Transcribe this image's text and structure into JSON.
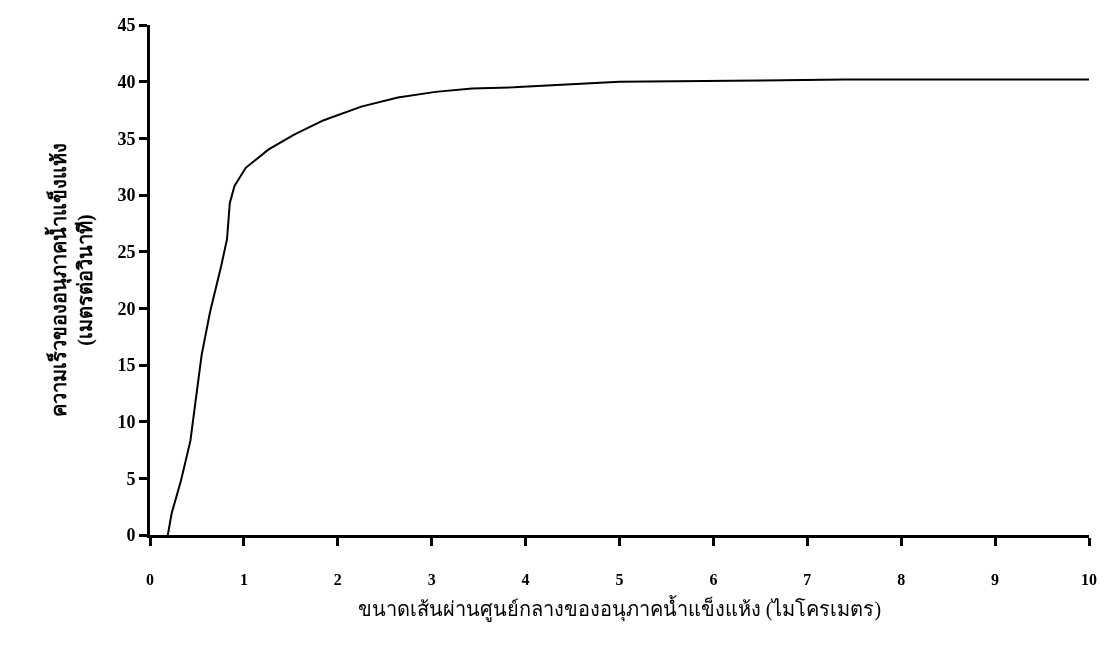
{
  "chart_data": {
    "type": "line",
    "xlabel": "ขนาดเส้นผ่านศูนย์กลางของอนุภาคน้ำแข็งแห้ง (ไมโครเมตร)",
    "ylabel": "ความเร็วของอนุภาคน้ำแข็งแห้ง\n(เมตรต่อวินาที)",
    "x": [
      0.19,
      0.23,
      0.33,
      0.43,
      0.49,
      0.55,
      0.64,
      0.76,
      0.82,
      0.85,
      0.9,
      1.02,
      1.26,
      1.53,
      1.85,
      2.25,
      2.64,
      3.04,
      3.43,
      3.87,
      5.0,
      6.5,
      7.4,
      10
    ],
    "series": [
      {
        "color": "#000000",
        "values": [
          0,
          1.9,
          4.8,
          8.3,
          12.1,
          15.9,
          19.7,
          23.8,
          26.1,
          29.3,
          30.8,
          32.4,
          34.0,
          35.3,
          36.6,
          37.8,
          38.6,
          39.1,
          39.4,
          39.5,
          40.0,
          40.1,
          40.2,
          40.2
        ]
      }
    ],
    "xlim": [
      0,
      10
    ],
    "xticks": [
      0,
      1,
      2,
      3,
      4,
      5,
      6,
      7,
      8,
      9,
      10
    ],
    "ylim": [
      0,
      45
    ],
    "yticks": [
      0,
      5,
      10,
      15,
      20,
      25,
      30,
      35,
      40,
      45
    ],
    "marker": "none",
    "line_style": "solid"
  }
}
